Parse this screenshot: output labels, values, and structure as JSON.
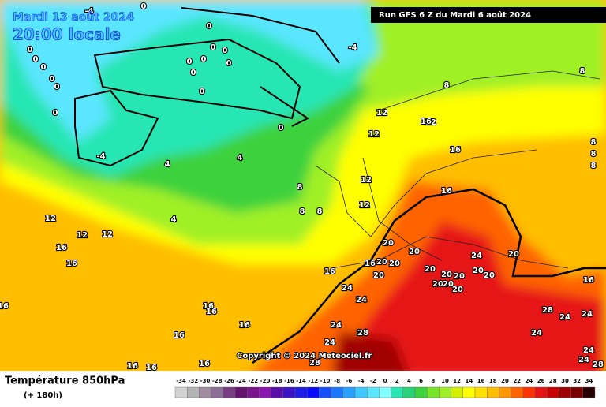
{
  "header": {
    "date": "Mardi 13 août 2024",
    "time": "20:00 locale",
    "run": "Run GFS 6 Z du Mardi 6 août 2024"
  },
  "map": {
    "copyright": "Copyright © 2024 Meteociel.fr",
    "contour_labels": [
      -4,
      -4,
      -4,
      0,
      0,
      0,
      0,
      0,
      0,
      0,
      0,
      0,
      0,
      0,
      0,
      0,
      0,
      0,
      0,
      4,
      4,
      4,
      8,
      8,
      8,
      8,
      8,
      8,
      8,
      8,
      12,
      12,
      12,
      12,
      12,
      12,
      12,
      12,
      16,
      16,
      16,
      16,
      16,
      16,
      16,
      16,
      16,
      16,
      16,
      16,
      16,
      16,
      16,
      16,
      20,
      20,
      20,
      20,
      20,
      20,
      20,
      20,
      20,
      20,
      20,
      20,
      20,
      20,
      24,
      24,
      24,
      24,
      24,
      24,
      24,
      24,
      24,
      24,
      24,
      28,
      28,
      28,
      28
    ]
  },
  "legend": {
    "title": "Température 850hPa",
    "subtitle": "(+ 180h)",
    "scale": [
      -34,
      -32,
      -30,
      -28,
      -26,
      -24,
      -22,
      -20,
      -18,
      -16,
      -14,
      -12,
      -10,
      -8,
      -6,
      -4,
      -2,
      0,
      2,
      4,
      6,
      8,
      10,
      12,
      14,
      16,
      18,
      20,
      22,
      24,
      26,
      28,
      30,
      32,
      34
    ],
    "colors": [
      "#d2d2d2",
      "#b4b4b4",
      "#a08ca0",
      "#8c6e96",
      "#7a3c82",
      "#64146e",
      "#7a148c",
      "#8c14b4",
      "#5a0faa",
      "#3c14c8",
      "#1e1ee6",
      "#0a0aff",
      "#1450ff",
      "#1e78ff",
      "#28a0ff",
      "#3cc8ff",
      "#5ae6ff",
      "#82ffff",
      "#28e6b4",
      "#28d278",
      "#3cd23c",
      "#78e628",
      "#a0f028",
      "#d2f000",
      "#ffff00",
      "#ffe100",
      "#ffbe00",
      "#ff9600",
      "#ff6400",
      "#ff3200",
      "#e61414",
      "#c80000",
      "#a00000",
      "#780000",
      "#280000"
    ]
  }
}
